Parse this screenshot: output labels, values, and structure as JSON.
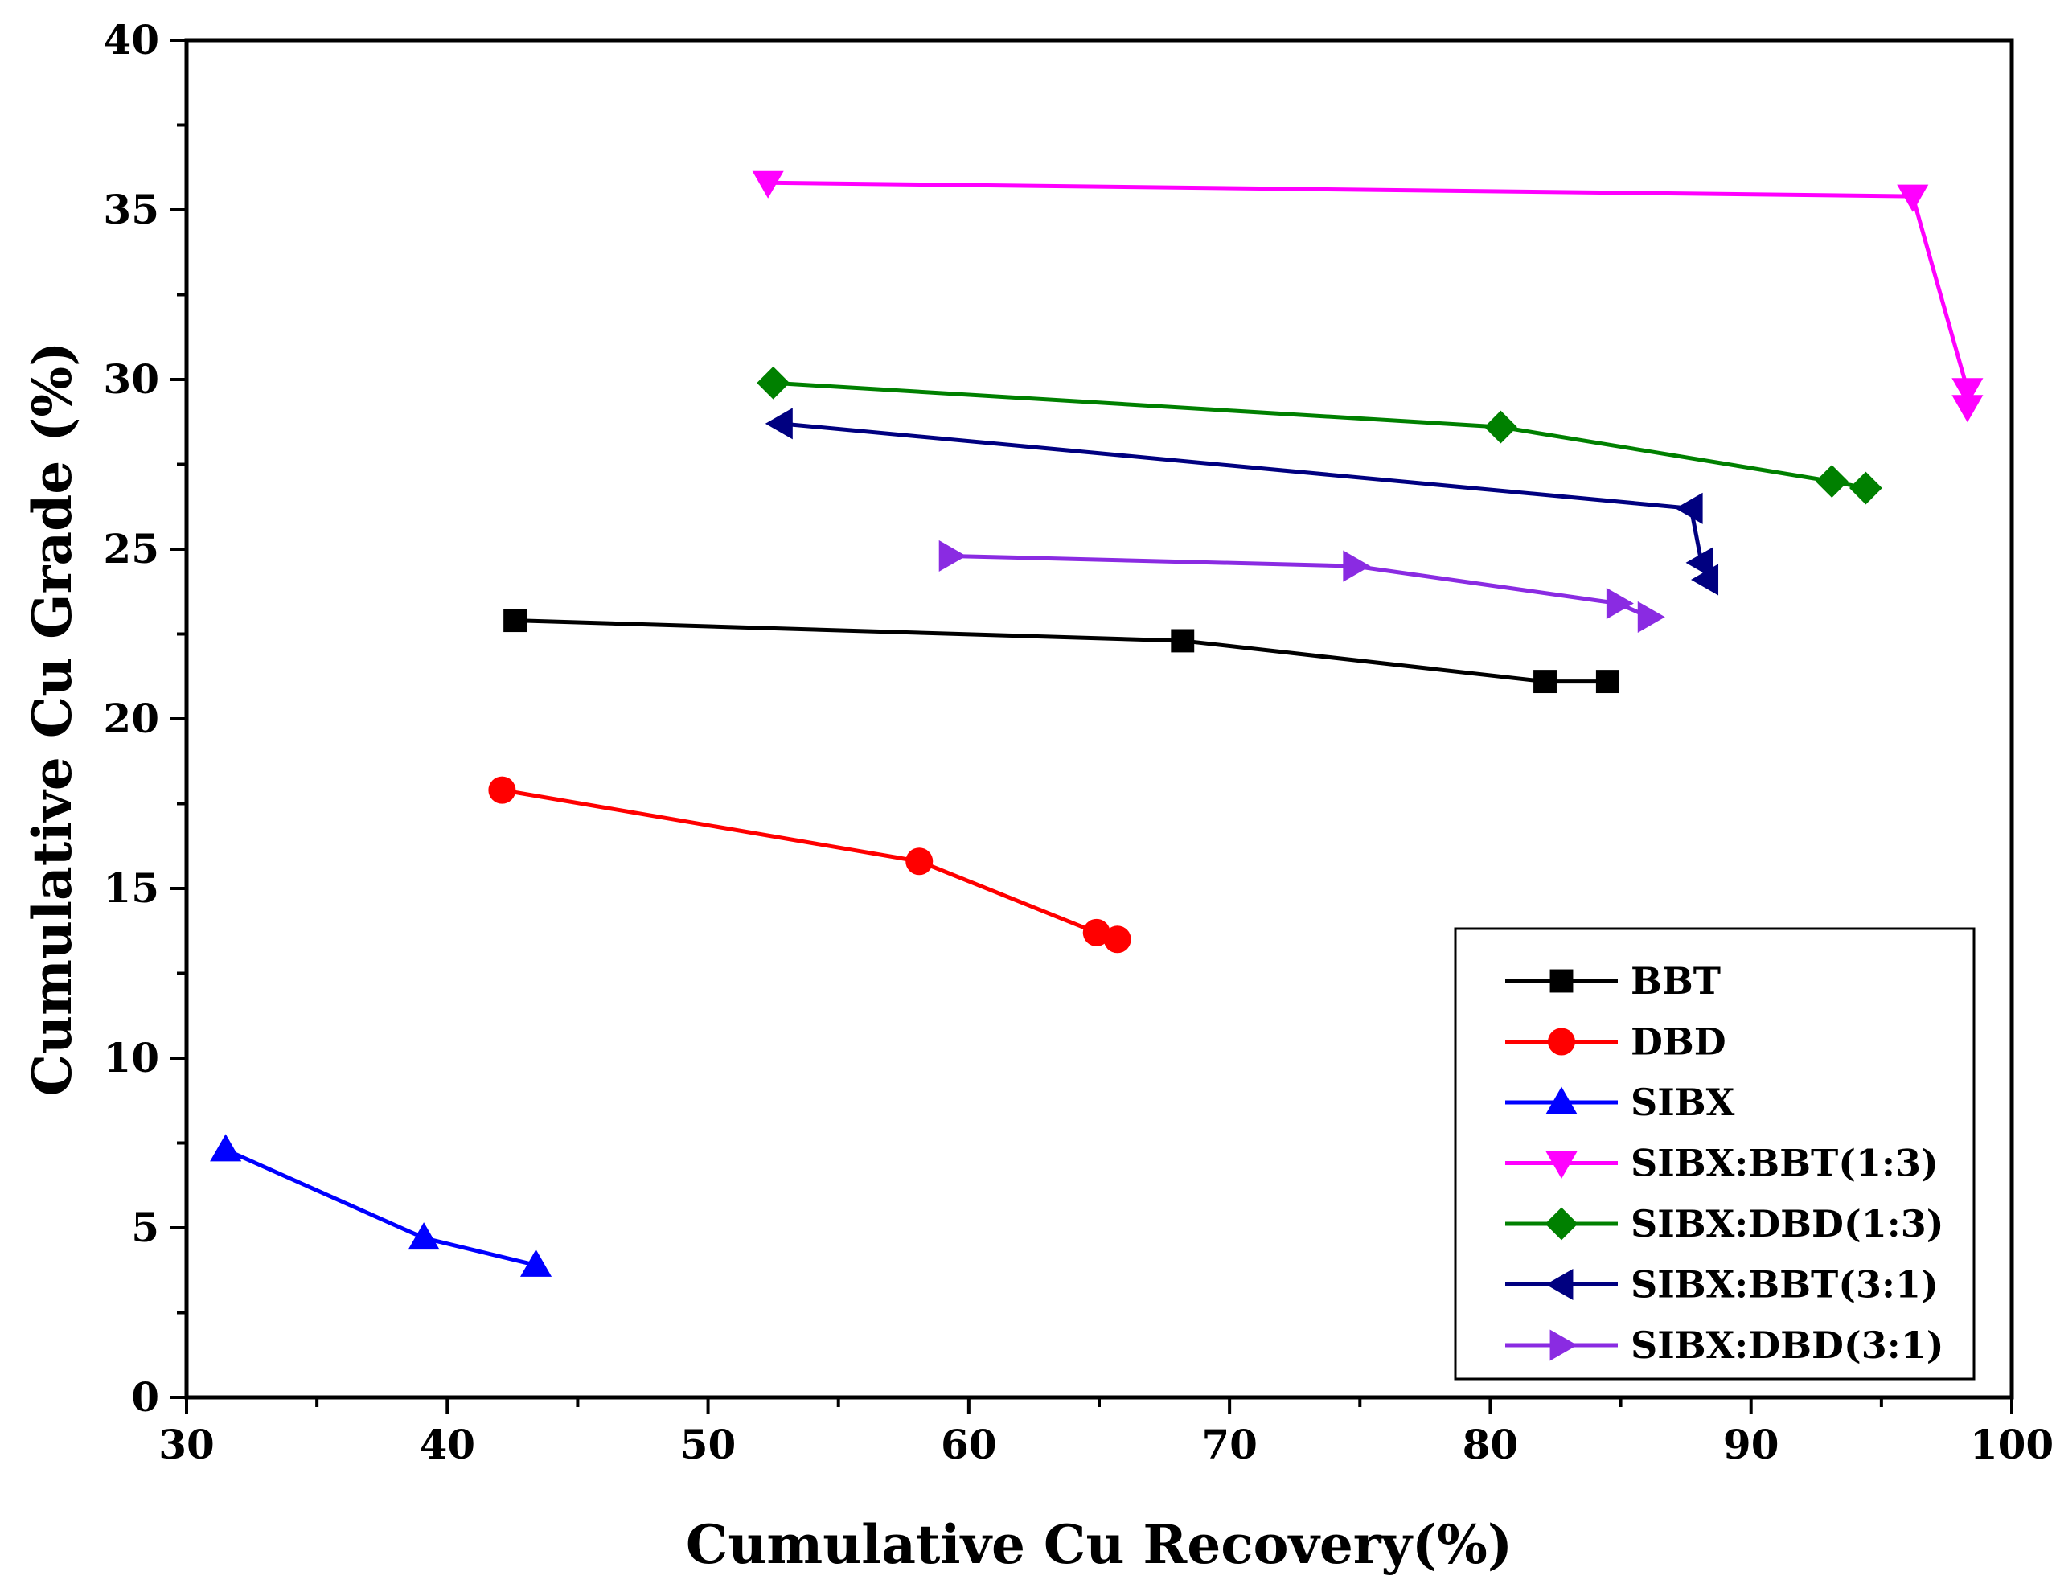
{
  "chart_data": {
    "type": "line",
    "title": "",
    "xlabel": "Cumulative Cu Recovery(%)",
    "ylabel": "Cumulative Cu Grade (%)",
    "xlim": [
      30,
      100
    ],
    "ylim": [
      0,
      40
    ],
    "xticks": [
      30,
      40,
      50,
      60,
      70,
      80,
      90,
      100
    ],
    "yticks": [
      0,
      5,
      10,
      15,
      20,
      25,
      30,
      35,
      40
    ],
    "grid": false,
    "legend_position": "bottom-right",
    "series": [
      {
        "name": "BBT",
        "color": "#000000",
        "marker": "square",
        "x": [
          42.6,
          68.2,
          82.1,
          84.5
        ],
        "y": [
          22.9,
          22.3,
          21.1,
          21.1
        ]
      },
      {
        "name": "DBD",
        "color": "#ff0000",
        "marker": "circle",
        "x": [
          42.1,
          58.1,
          64.9,
          65.7
        ],
        "y": [
          17.9,
          15.8,
          13.7,
          13.5
        ]
      },
      {
        "name": "SIBX",
        "color": "#0000ff",
        "marker": "triangle-up",
        "x": [
          31.5,
          39.1,
          43.4
        ],
        "y": [
          7.3,
          4.7,
          3.9
        ]
      },
      {
        "name": "SIBX:BBT(1:3)",
        "color": "#ff00ff",
        "marker": "triangle-down",
        "x": [
          52.3,
          96.2,
          98.3,
          98.3
        ],
        "y": [
          35.8,
          35.4,
          29.7,
          29.2
        ]
      },
      {
        "name": "SIBX:DBD(1:3)",
        "color": "#008000",
        "marker": "diamond",
        "x": [
          52.5,
          80.4,
          93.1,
          94.4
        ],
        "y": [
          29.9,
          28.6,
          27.0,
          26.8
        ]
      },
      {
        "name": "SIBX:BBT(3:1)",
        "color": "#000080",
        "marker": "triangle-left",
        "x": [
          52.8,
          87.7,
          88.1,
          88.3
        ],
        "y": [
          28.7,
          26.2,
          24.6,
          24.1
        ]
      },
      {
        "name": "SIBX:DBD(3:1)",
        "color": "#8a2be2",
        "marker": "triangle-right",
        "x": [
          59.3,
          74.8,
          84.9,
          86.1
        ],
        "y": [
          24.8,
          24.5,
          23.4,
          23.0
        ]
      }
    ]
  }
}
